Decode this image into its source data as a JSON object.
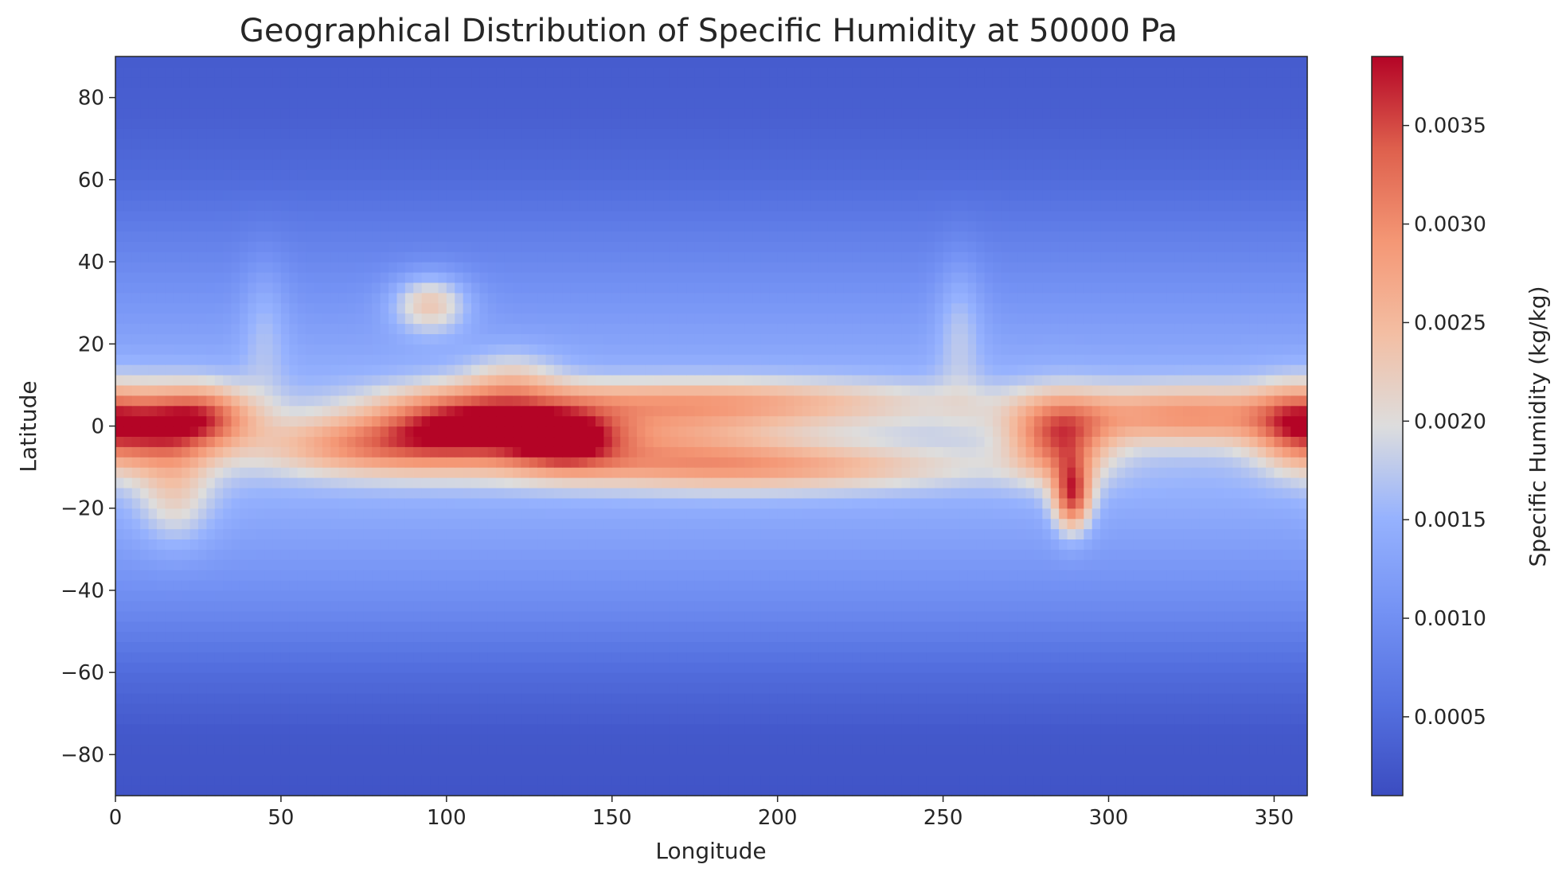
{
  "chart_data": {
    "type": "heatmap",
    "title": "Geographical Distribution of Specific Humidity at 50000 Pa",
    "xlabel": "Longitude",
    "ylabel": "Latitude",
    "xlim": [
      0,
      360
    ],
    "ylim": [
      -90,
      90
    ],
    "x_ticks": [
      0,
      50,
      100,
      150,
      200,
      250,
      300,
      350
    ],
    "y_ticks": [
      -80,
      -60,
      -40,
      -20,
      0,
      20,
      40,
      60,
      80
    ],
    "x_tick_labels": [
      "0",
      "50",
      "100",
      "150",
      "200",
      "250",
      "300",
      "350"
    ],
    "y_tick_labels": [
      "−80",
      "−60",
      "−40",
      "−20",
      "0",
      "20",
      "40",
      "60",
      "80"
    ],
    "colormap": "coolwarm",
    "colorbar": {
      "label": "Specific Humidity (kg/kg)",
      "min": 0.0001,
      "max": 0.00385,
      "ticks": [
        0.0005,
        0.001,
        0.0015,
        0.002,
        0.0025,
        0.003,
        0.0035
      ],
      "tick_labels": [
        "0.0005",
        "0.0010",
        "0.0015",
        "0.0020",
        "0.0025",
        "0.0030",
        "0.0035"
      ]
    },
    "field_description": {
      "background_by_latitude": [
        {
          "lat": -90,
          "value": 0.0002
        },
        {
          "lat": -75,
          "value": 0.00025
        },
        {
          "lat": -60,
          "value": 0.0005
        },
        {
          "lat": -45,
          "value": 0.0009
        },
        {
          "lat": -30,
          "value": 0.0012
        },
        {
          "lat": -15,
          "value": 0.0015
        },
        {
          "lat": 0,
          "value": 0.0017
        },
        {
          "lat": 15,
          "value": 0.0014
        },
        {
          "lat": 30,
          "value": 0.0011
        },
        {
          "lat": 45,
          "value": 0.0008
        },
        {
          "lat": 60,
          "value": 0.0005
        },
        {
          "lat": 75,
          "value": 0.00035
        },
        {
          "lat": 90,
          "value": 0.0003
        }
      ],
      "moist_features": [
        {
          "lon": 12,
          "lat": -1,
          "lon_width": 14,
          "lat_width": 7,
          "value": 0.0017
        },
        {
          "lon": 28,
          "lat": 3,
          "lon_width": 10,
          "lat_width": 5,
          "value": 0.0011
        },
        {
          "lon": 18,
          "lat": -18,
          "lon_width": 8,
          "lat_width": 8,
          "value": 0.0007
        },
        {
          "lon": 75,
          "lat": -5,
          "lon_width": 22,
          "lat_width": 5,
          "value": 0.0012
        },
        {
          "lon": 105,
          "lat": 0,
          "lon_width": 18,
          "lat_width": 6,
          "value": 0.0019
        },
        {
          "lon": 135,
          "lat": -3,
          "lon_width": 12,
          "lat_width": 5,
          "value": 0.0018
        },
        {
          "lon": 175,
          "lat": 6,
          "lon_width": 50,
          "lat_width": 4,
          "value": 0.0012
        },
        {
          "lon": 190,
          "lat": -10,
          "lon_width": 45,
          "lat_width": 4,
          "value": 0.0012
        },
        {
          "lon": 160,
          "lat": -3,
          "lon_width": 30,
          "lat_width": 5,
          "value": 0.0008
        },
        {
          "lon": 95,
          "lat": 30,
          "lon_width": 8,
          "lat_width": 5,
          "value": 0.0012
        },
        {
          "lon": 120,
          "lat": 12,
          "lon_width": 10,
          "lat_width": 5,
          "value": 0.0006
        },
        {
          "lon": 285,
          "lat": -3,
          "lon_width": 10,
          "lat_width": 7,
          "value": 0.0016
        },
        {
          "lon": 289,
          "lat": -17,
          "lon_width": 4,
          "lat_width": 6,
          "value": 0.002
        },
        {
          "lon": 325,
          "lat": 3,
          "lon_width": 28,
          "lat_width": 5,
          "value": 0.0013
        },
        {
          "lon": 355,
          "lat": 0,
          "lon_width": 8,
          "lat_width": 7,
          "value": 0.0008
        },
        {
          "lon": 255,
          "lat": 25,
          "lon_width": 5,
          "lat_width": 12,
          "value": 0.0005
        },
        {
          "lon": 45,
          "lat": 25,
          "lon_width": 5,
          "lat_width": 12,
          "value": 0.0004
        }
      ]
    }
  }
}
